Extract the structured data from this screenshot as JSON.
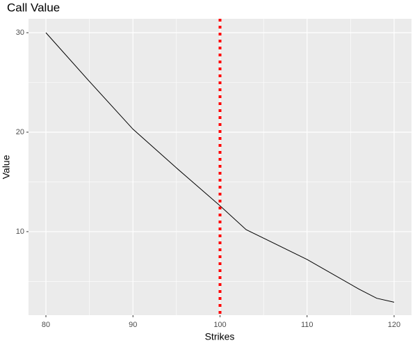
{
  "chart_data": {
    "type": "line",
    "title": "Call Value",
    "x_label": "Strikes",
    "y_label": "Value",
    "x": [
      80,
      85,
      90,
      95,
      100,
      103,
      110,
      116,
      118,
      120
    ],
    "series": [
      {
        "color": "#000000",
        "values": [
          30,
          25.1,
          20.3,
          16.4,
          12.6,
          10.2,
          7.2,
          4.2,
          3.3,
          2.9
        ]
      }
    ],
    "xlim": [
      78,
      122
    ],
    "xticks": [
      80,
      90,
      100,
      110,
      120
    ],
    "xminor": [
      85,
      95,
      105,
      115
    ],
    "ylim": [
      1.6,
      31.4
    ],
    "yticks": [
      10,
      20,
      30
    ],
    "yminor": [
      5,
      15,
      25
    ],
    "vline": {
      "x": 100,
      "color": "#ff0000"
    },
    "grid": true
  }
}
